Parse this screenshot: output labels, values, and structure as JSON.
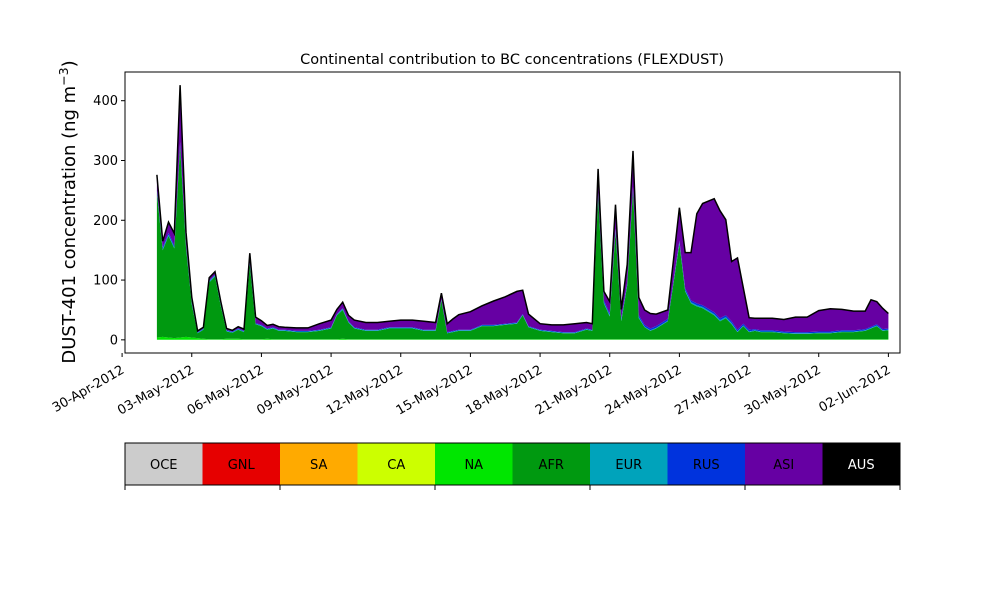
{
  "chart_data": {
    "type": "area",
    "stacked": true,
    "title": "Continental contribution to BC concentrations (FLEXDUST)",
    "ylabel": "DUST-401 concentration (ng m",
    "ylabel_exp": "−3",
    "ylabel_close": ")",
    "xlabel": "",
    "grid": false,
    "ylim": [
      -22,
      448
    ],
    "xlim": [
      "2012-04-30T03:00",
      "2012-06-02T12:00"
    ],
    "yticks": [
      0,
      100,
      200,
      300,
      400
    ],
    "xticks": [
      {
        "date": "2012-04-30",
        "label": "30-Apr-2012"
      },
      {
        "date": "2012-05-03",
        "label": "03-May-2012"
      },
      {
        "date": "2012-05-06",
        "label": "06-May-2012"
      },
      {
        "date": "2012-05-09",
        "label": "09-May-2012"
      },
      {
        "date": "2012-05-12",
        "label": "12-May-2012"
      },
      {
        "date": "2012-05-15",
        "label": "15-May-2012"
      },
      {
        "date": "2012-05-18",
        "label": "18-May-2012"
      },
      {
        "date": "2012-05-21",
        "label": "21-May-2012"
      },
      {
        "date": "2012-05-24",
        "label": "24-May-2012"
      },
      {
        "date": "2012-05-27",
        "label": "27-May-2012"
      },
      {
        "date": "2012-05-30",
        "label": "30-May-2012"
      },
      {
        "date": "2012-06-02",
        "label": "02-Jun-2012"
      }
    ],
    "x": [
      "2012-05-01T12:00",
      "2012-05-01T18:00",
      "2012-05-02T00:00",
      "2012-05-02T06:00",
      "2012-05-02T12:00",
      "2012-05-02T18:00",
      "2012-05-03T00:00",
      "2012-05-03T06:00",
      "2012-05-03T12:00",
      "2012-05-03T18:00",
      "2012-05-04T00:00",
      "2012-05-04T06:00",
      "2012-05-04T12:00",
      "2012-05-04T18:00",
      "2012-05-05T00:00",
      "2012-05-05T06:00",
      "2012-05-05T12:00",
      "2012-05-05T18:00",
      "2012-05-06T00:00",
      "2012-05-06T06:00",
      "2012-05-06T12:00",
      "2012-05-06T18:00",
      "2012-05-07T00:00",
      "2012-05-07T12:00",
      "2012-05-08T00:00",
      "2012-05-08T12:00",
      "2012-05-09T00:00",
      "2012-05-09T06:00",
      "2012-05-09T12:00",
      "2012-05-09T18:00",
      "2012-05-10T00:00",
      "2012-05-10T12:00",
      "2012-05-11T00:00",
      "2012-05-11T12:00",
      "2012-05-12T00:00",
      "2012-05-12T12:00",
      "2012-05-13T00:00",
      "2012-05-13T12:00",
      "2012-05-13T18:00",
      "2012-05-14T00:00",
      "2012-05-14T06:00",
      "2012-05-14T12:00",
      "2012-05-15T00:00",
      "2012-05-15T12:00",
      "2012-05-16T00:00",
      "2012-05-16T12:00",
      "2012-05-17T00:00",
      "2012-05-17T06:00",
      "2012-05-17T12:00",
      "2012-05-18T00:00",
      "2012-05-18T12:00",
      "2012-05-19T00:00",
      "2012-05-19T12:00",
      "2012-05-20T00:00",
      "2012-05-20T06:00",
      "2012-05-20T12:00",
      "2012-05-20T18:00",
      "2012-05-21T00:00",
      "2012-05-21T06:00",
      "2012-05-21T12:00",
      "2012-05-21T18:00",
      "2012-05-22T00:00",
      "2012-05-22T06:00",
      "2012-05-22T12:00",
      "2012-05-22T18:00",
      "2012-05-23T00:00",
      "2012-05-23T12:00",
      "2012-05-24T00:00",
      "2012-05-24T06:00",
      "2012-05-24T12:00",
      "2012-05-24T18:00",
      "2012-05-25T00:00",
      "2012-05-25T12:00",
      "2012-05-25T18:00",
      "2012-05-26T00:00",
      "2012-05-26T06:00",
      "2012-05-26T12:00",
      "2012-05-26T18:00",
      "2012-05-27T00:00",
      "2012-05-27T06:00",
      "2012-05-27T12:00",
      "2012-05-28T00:00",
      "2012-05-28T12:00",
      "2012-05-29T00:00",
      "2012-05-29T12:00",
      "2012-05-30T00:00",
      "2012-05-30T12:00",
      "2012-05-31T00:00",
      "2012-05-31T12:00",
      "2012-06-01T00:00",
      "2012-06-01T06:00",
      "2012-06-01T12:00",
      "2012-06-01T18:00",
      "2012-06-02T00:00"
    ],
    "colors": {
      "OCE": "#cccccc",
      "GNL": "#e60000",
      "SA": "#ffaa00",
      "CA": "#ccff00",
      "NA": "#00e600",
      "AFR": "#009910",
      "EUR": "#00a3bb",
      "RUS": "#0033dd",
      "ASI": "#6600a3",
      "AUS": "#000000"
    },
    "series": [
      {
        "name": "OCE",
        "values": [
          0,
          0,
          0,
          0,
          0,
          0,
          0,
          0,
          0,
          0,
          0,
          0,
          0,
          0,
          0,
          0,
          0,
          0,
          0,
          0,
          0,
          0,
          0,
          0,
          0,
          0,
          0,
          0,
          0,
          0,
          0,
          0,
          0,
          0,
          0,
          0,
          0,
          0,
          0,
          0,
          0,
          0,
          0,
          0,
          0,
          0,
          0,
          0,
          0,
          0,
          0,
          0,
          0,
          0,
          0,
          0,
          0,
          0,
          0,
          0,
          0,
          0,
          0,
          0,
          0,
          0,
          0,
          0,
          0,
          0,
          0,
          0,
          0,
          0,
          0,
          0,
          0,
          0,
          0,
          0,
          0,
          0,
          0,
          0,
          0,
          0,
          0,
          0,
          0,
          0,
          0,
          0,
          0,
          0
        ]
      },
      {
        "name": "GNL",
        "values": [
          0,
          0,
          0,
          0,
          0,
          0,
          0,
          0,
          0,
          0,
          0,
          0,
          0,
          0,
          0,
          0,
          0,
          0,
          0,
          0,
          0,
          0,
          0,
          0,
          0,
          0,
          0,
          0,
          0,
          0,
          0,
          0,
          0,
          0,
          0,
          0,
          0,
          0,
          0,
          0,
          0,
          0,
          0,
          0,
          0,
          0,
          0,
          0,
          0,
          0,
          0,
          0,
          0,
          0,
          0,
          0,
          0,
          0,
          0,
          0,
          0,
          0,
          0,
          0,
          0,
          0,
          0,
          0,
          0,
          0,
          0,
          0,
          0,
          0,
          0,
          0,
          0,
          0,
          0,
          0,
          0,
          0,
          0,
          0,
          0,
          0,
          0,
          0,
          0,
          0,
          0,
          0,
          0,
          0
        ]
      },
      {
        "name": "SA",
        "values": [
          0,
          0,
          0,
          0,
          0,
          0,
          0,
          0,
          0,
          0,
          0,
          0,
          0,
          0,
          0,
          0,
          0,
          0,
          0,
          0,
          0,
          0,
          0,
          0,
          0,
          0,
          0,
          0,
          0,
          0,
          0,
          0,
          0,
          0,
          0,
          0,
          0,
          0,
          0,
          0,
          0,
          0,
          0,
          0,
          0,
          0,
          0,
          0,
          0,
          0,
          0,
          0,
          0,
          0,
          0,
          0,
          0,
          0,
          0,
          0,
          0,
          0,
          0,
          0,
          0,
          0,
          0,
          0,
          0,
          0,
          0,
          0,
          0,
          0,
          0,
          0,
          0,
          0,
          0,
          0,
          0,
          0,
          0,
          0,
          0,
          0,
          0,
          0,
          0,
          0,
          0,
          0,
          0,
          0
        ]
      },
      {
        "name": "CA",
        "values": [
          0,
          0,
          0,
          0,
          0,
          0,
          0,
          0,
          0,
          0,
          0,
          0,
          0,
          0,
          0,
          0,
          0,
          0,
          0,
          0,
          0,
          0,
          0,
          0,
          0,
          0,
          0,
          0,
          0,
          0,
          0,
          0,
          0,
          0,
          0,
          0,
          0,
          0,
          0,
          0,
          0,
          0,
          0,
          0,
          0,
          0,
          0,
          0,
          0,
          0,
          0,
          0,
          0,
          0,
          0,
          0,
          0,
          0,
          0,
          0,
          0,
          0,
          0,
          0,
          0,
          0,
          0,
          0,
          0,
          0,
          0,
          0,
          0,
          0,
          0,
          0,
          0,
          0,
          0,
          0,
          0,
          0,
          0,
          0,
          0,
          0,
          0,
          0,
          0,
          0,
          0,
          0,
          0,
          0
        ]
      },
      {
        "name": "NA",
        "values": [
          4,
          5,
          4,
          3,
          4,
          5,
          4,
          3,
          2,
          1,
          1,
          1,
          2,
          2,
          2,
          1,
          1,
          1,
          1,
          2,
          1,
          1,
          1,
          1,
          1,
          1,
          1,
          1,
          2,
          1,
          1,
          1,
          1,
          1,
          1,
          1,
          1,
          1,
          1,
          1,
          1,
          1,
          1,
          1,
          1,
          1,
          1,
          1,
          1,
          1,
          1,
          1,
          1,
          1,
          1,
          1,
          1,
          1,
          1,
          1,
          1,
          1,
          1,
          1,
          1,
          1,
          1,
          1,
          1,
          1,
          1,
          1,
          1,
          1,
          1,
          1,
          1,
          1,
          1,
          1,
          1,
          1,
          1,
          1,
          1,
          1,
          1,
          1,
          1,
          1,
          1,
          1,
          1,
          1
        ]
      },
      {
        "name": "AFR",
        "values": [
          242,
          145,
          170,
          150,
          320,
          150,
          55,
          8,
          15,
          95,
          105,
          55,
          12,
          10,
          15,
          12,
          125,
          25,
          22,
          15,
          18,
          14,
          14,
          12,
          12,
          14,
          18,
          40,
          48,
          28,
          18,
          14,
          14,
          18,
          18,
          18,
          14,
          14,
          65,
          10,
          12,
          14,
          14,
          22,
          22,
          24,
          26,
          40,
          20,
          14,
          12,
          10,
          10,
          16,
          14,
          240,
          60,
          38,
          180,
          30,
          90,
          250,
          35,
          20,
          14,
          18,
          30,
          160,
          80,
          60,
          55,
          52,
          40,
          30,
          35,
          25,
          12,
          22,
          12,
          14,
          12,
          12,
          10,
          9,
          9,
          10,
          10,
          12,
          12,
          14,
          18,
          22,
          14,
          15
        ]
      },
      {
        "name": "EUR",
        "values": [
          2,
          2,
          2,
          2,
          2,
          2,
          2,
          1,
          1,
          2,
          2,
          2,
          1,
          1,
          1,
          1,
          2,
          1,
          1,
          1,
          1,
          1,
          1,
          1,
          1,
          1,
          1,
          1,
          2,
          1,
          1,
          1,
          1,
          1,
          1,
          1,
          1,
          1,
          1,
          1,
          1,
          1,
          1,
          1,
          1,
          1,
          1,
          1,
          1,
          1,
          1,
          1,
          1,
          1,
          1,
          2,
          2,
          2,
          2,
          2,
          2,
          2,
          2,
          1,
          1,
          1,
          1,
          2,
          2,
          2,
          2,
          2,
          2,
          2,
          2,
          2,
          1,
          1,
          1,
          1,
          1,
          1,
          1,
          1,
          1,
          1,
          1,
          1,
          1,
          1,
          1,
          1,
          1,
          1
        ]
      },
      {
        "name": "RUS",
        "values": [
          3,
          3,
          3,
          3,
          5,
          3,
          2,
          1,
          1,
          1,
          1,
          1,
          1,
          1,
          1,
          1,
          2,
          1,
          1,
          1,
          1,
          1,
          1,
          1,
          1,
          1,
          1,
          1,
          1,
          1,
          1,
          1,
          1,
          1,
          1,
          1,
          1,
          1,
          1,
          1,
          1,
          1,
          1,
          1,
          1,
          1,
          1,
          1,
          1,
          1,
          1,
          1,
          1,
          1,
          1,
          3,
          3,
          3,
          3,
          3,
          3,
          3,
          3,
          3,
          3,
          3,
          3,
          3,
          3,
          3,
          3,
          3,
          3,
          3,
          3,
          3,
          3,
          3,
          3,
          2,
          2,
          2,
          2,
          2,
          2,
          2,
          2,
          2,
          2,
          2,
          2,
          2,
          2,
          2
        ]
      },
      {
        "name": "ASI",
        "values": [
          25,
          10,
          18,
          20,
          95,
          20,
          8,
          2,
          2,
          5,
          5,
          5,
          3,
          2,
          3,
          3,
          15,
          10,
          7,
          5,
          5,
          5,
          4,
          5,
          5,
          10,
          12,
          8,
          10,
          10,
          12,
          12,
          12,
          10,
          12,
          12,
          14,
          12,
          10,
          14,
          20,
          25,
          30,
          32,
          40,
          45,
          52,
          40,
          20,
          10,
          10,
          12,
          14,
          10,
          10,
          40,
          15,
          20,
          40,
          15,
          30,
          60,
          30,
          25,
          25,
          20,
          15,
          55,
          60,
          80,
          150,
          170,
          190,
          180,
          160,
          100,
          120,
          60,
          20,
          18,
          20,
          20,
          20,
          25,
          25,
          35,
          38,
          35,
          32,
          30,
          45,
          38,
          35,
          25
        ]
      },
      {
        "name": "AUS",
        "values": [
          0,
          0,
          0,
          0,
          0,
          0,
          0,
          0,
          0,
          0,
          0,
          0,
          0,
          0,
          0,
          0,
          0,
          0,
          0,
          0,
          0,
          0,
          0,
          0,
          0,
          0,
          0,
          0,
          0,
          0,
          0,
          0,
          0,
          0,
          0,
          0,
          0,
          0,
          0,
          0,
          0,
          0,
          0,
          0,
          0,
          0,
          0,
          0,
          0,
          0,
          0,
          0,
          0,
          0,
          0,
          0,
          0,
          0,
          0,
          0,
          0,
          0,
          0,
          0,
          0,
          0,
          0,
          0,
          0,
          0,
          0,
          0,
          0,
          0,
          0,
          0,
          0,
          0,
          0,
          0,
          0,
          0,
          0,
          0,
          0,
          0,
          0,
          0,
          0,
          0,
          0,
          0,
          0,
          0
        ]
      }
    ],
    "total_line_color": "#000000"
  },
  "legend": {
    "placement": "colorbar-below",
    "items": [
      {
        "label": "OCE",
        "color": "#cccccc",
        "text_color": "#000000"
      },
      {
        "label": "GNL",
        "color": "#e60000",
        "text_color": "#000000"
      },
      {
        "label": "SA",
        "color": "#ffaa00",
        "text_color": "#000000"
      },
      {
        "label": "CA",
        "color": "#ccff00",
        "text_color": "#000000"
      },
      {
        "label": "NA",
        "color": "#00e600",
        "text_color": "#000000"
      },
      {
        "label": "AFR",
        "color": "#009910",
        "text_color": "#000000"
      },
      {
        "label": "EUR",
        "color": "#00a3bb",
        "text_color": "#000000"
      },
      {
        "label": "RUS",
        "color": "#0033dd",
        "text_color": "#000000"
      },
      {
        "label": "ASI",
        "color": "#6600a3",
        "text_color": "#000000"
      },
      {
        "label": "AUS",
        "color": "#000000",
        "text_color": "#ffffff"
      }
    ]
  }
}
